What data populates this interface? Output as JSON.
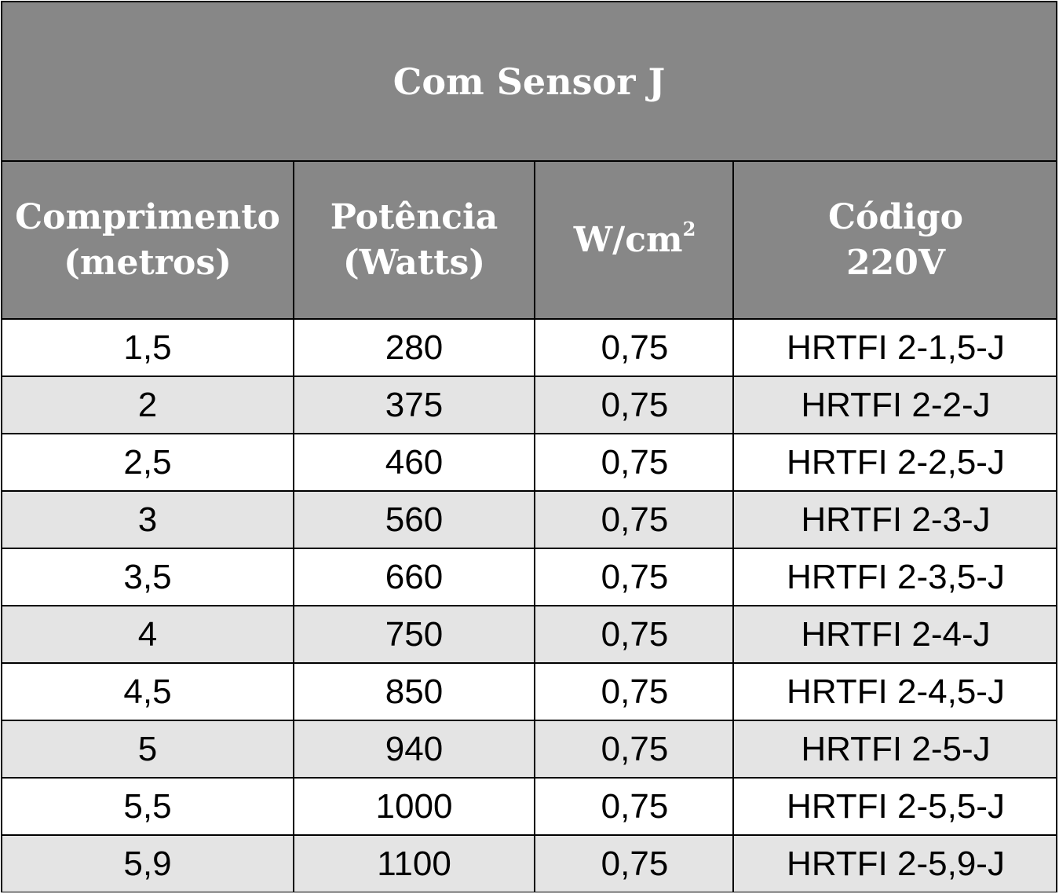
{
  "table": {
    "title": "Com Sensor J",
    "headers": [
      {
        "line1": "Comprimento",
        "line2": "(metros)"
      },
      {
        "line1": "Potência",
        "line2": "(Watts)"
      },
      {
        "line1": "W/cm",
        "sup": "2"
      },
      {
        "line1": "Código",
        "line2": "220V"
      }
    ],
    "rows": [
      {
        "comprimento": "1,5",
        "potencia": "280",
        "wcm2": "0,75",
        "codigo": "HRTFI 2-1,5-J"
      },
      {
        "comprimento": "2",
        "potencia": "375",
        "wcm2": "0,75",
        "codigo": "HRTFI 2-2-J"
      },
      {
        "comprimento": "2,5",
        "potencia": "460",
        "wcm2": "0,75",
        "codigo": "HRTFI 2-2,5-J"
      },
      {
        "comprimento": "3",
        "potencia": "560",
        "wcm2": "0,75",
        "codigo": "HRTFI 2-3-J"
      },
      {
        "comprimento": "3,5",
        "potencia": "660",
        "wcm2": "0,75",
        "codigo": "HRTFI 2-3,5-J"
      },
      {
        "comprimento": "4",
        "potencia": "750",
        "wcm2": "0,75",
        "codigo": "HRTFI 2-4-J"
      },
      {
        "comprimento": "4,5",
        "potencia": "850",
        "wcm2": "0,75",
        "codigo": "HRTFI 2-4,5-J"
      },
      {
        "comprimento": "5",
        "potencia": "940",
        "wcm2": "0,75",
        "codigo": "HRTFI 2-5-J"
      },
      {
        "comprimento": "5,5",
        "potencia": "1000",
        "wcm2": "0,75",
        "codigo": "HRTFI 2-5,5-J"
      },
      {
        "comprimento": "5,9",
        "potencia": "1100",
        "wcm2": "0,75",
        "codigo": "HRTFI 2-5,9-J"
      }
    ],
    "colors": {
      "header_bg": "#878787",
      "header_text": "#ffffff",
      "row_alt_bg": "#e4e4e4",
      "border": "#000000"
    }
  }
}
